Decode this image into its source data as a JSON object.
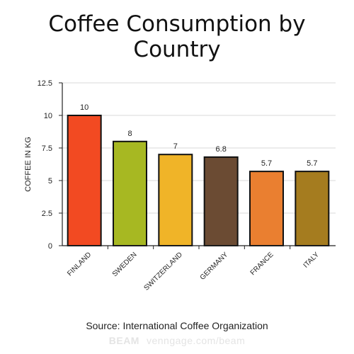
{
  "title_line1": "Coffee Consumption by",
  "title_line2": "Country",
  "source": "Source: International Coffee Organization",
  "watermark": {
    "brand": "BEAM",
    "url": "venngage.com/beam"
  },
  "chart_data": {
    "type": "bar",
    "categories": [
      "FINLAND",
      "SWEDEN",
      "SWITZERLAND",
      "GERMANY",
      "FRANCE",
      "ITALY"
    ],
    "values": [
      10,
      8,
      7,
      6.8,
      5.7,
      5.7
    ],
    "data_labels": [
      "10",
      "8",
      "7",
      "6.8",
      "5.7",
      "5.7"
    ],
    "colors": [
      "#f24a22",
      "#a7b822",
      "#f0b428",
      "#6b4b33",
      "#ea7f30",
      "#a57c1f"
    ],
    "ylabel": "COFFEE IN KG",
    "xlabel": "",
    "ylim": [
      0,
      12.5
    ],
    "yticks": [
      "0",
      "2.5",
      "5",
      "7.5",
      "10",
      "12.5"
    ],
    "grid": true,
    "legend": "none"
  }
}
